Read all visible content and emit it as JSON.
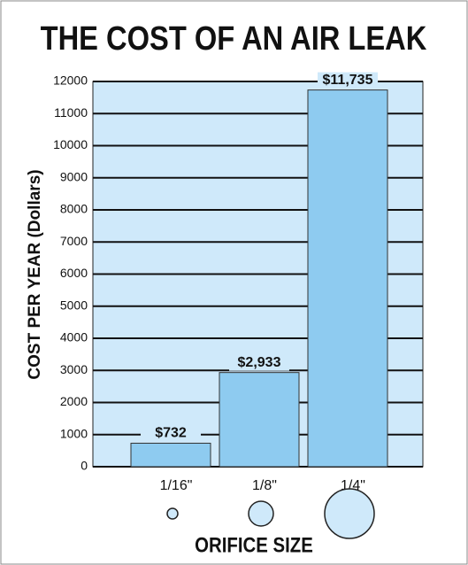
{
  "chart_data": {
    "type": "bar",
    "title": "THE COST OF AN AIR LEAK",
    "y_label": "COST PER YEAR (Dollars)",
    "x_label": "ORIFICE SIZE",
    "categories": [
      "1/16\"",
      "1/8\"",
      "1/4\""
    ],
    "values": [
      732,
      2933,
      11735
    ],
    "value_labels": [
      "$732",
      "$2,933",
      "$11,735"
    ],
    "color": "#8ecbf0",
    "ylim": [
      0,
      12000
    ],
    "yticks": [
      0,
      1000,
      2000,
      3000,
      4000,
      5000,
      6000,
      7000,
      8000,
      9000,
      10000,
      11000,
      12000
    ],
    "grid": true
  }
}
